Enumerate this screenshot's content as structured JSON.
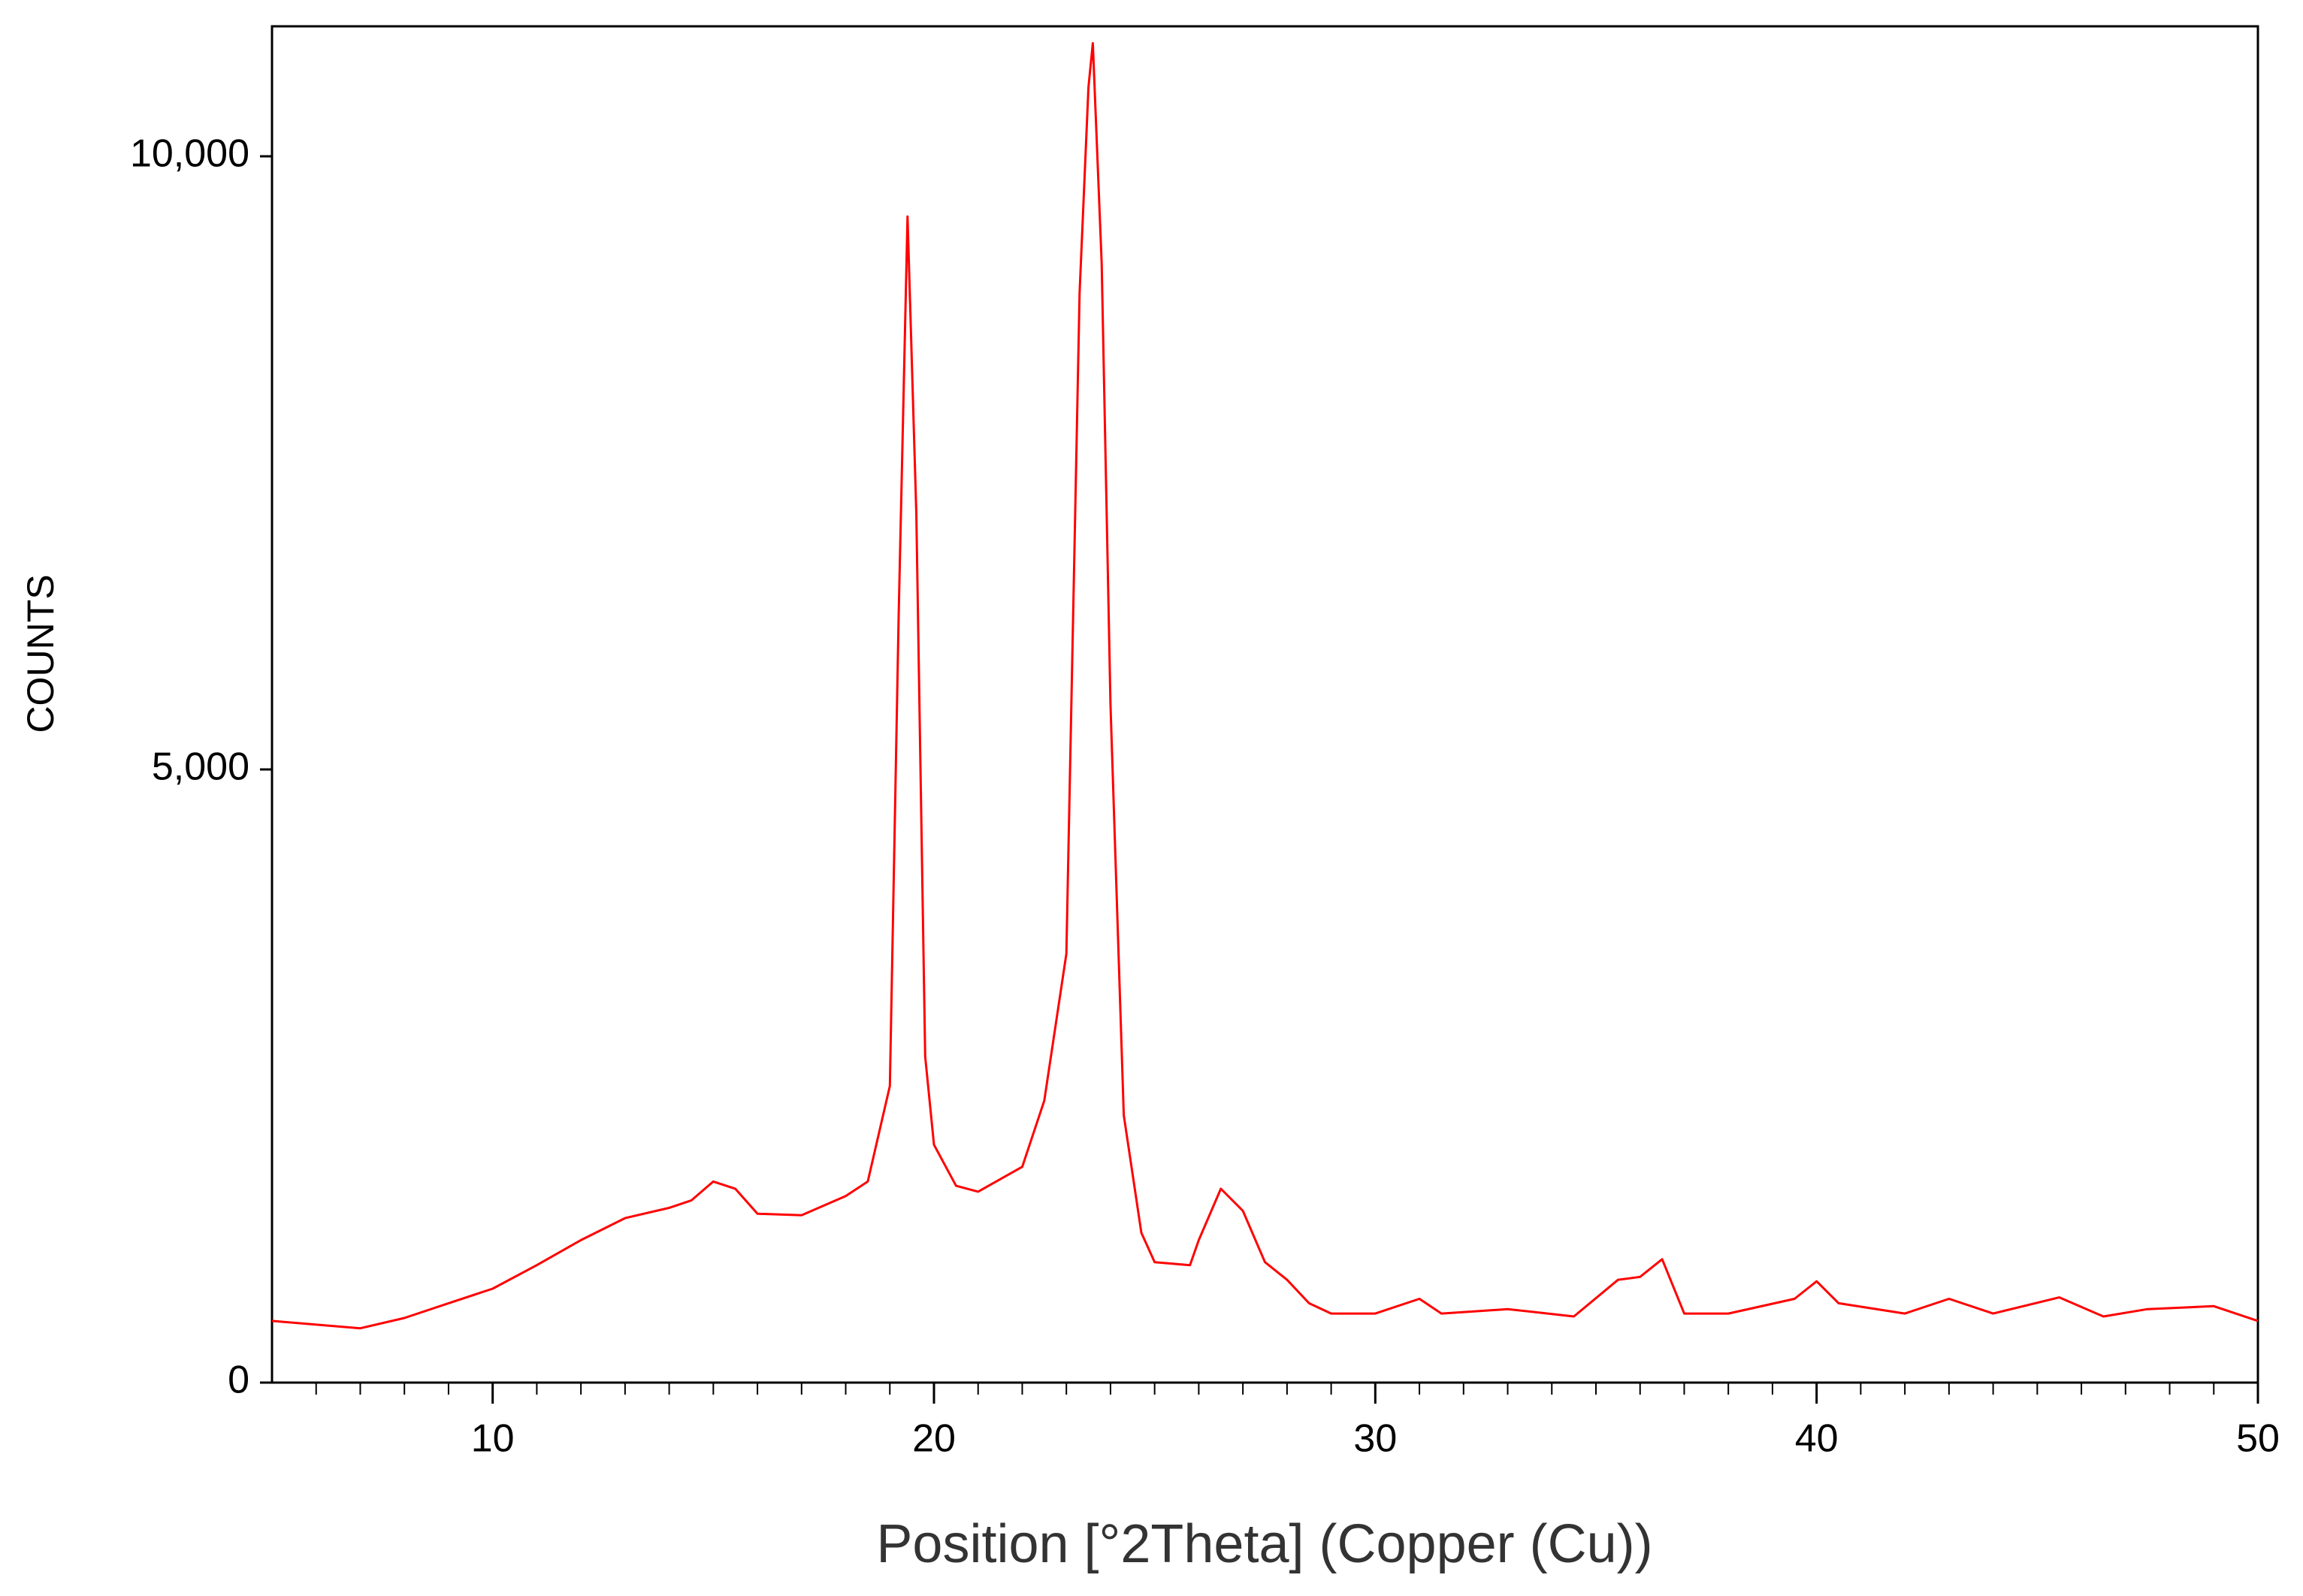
{
  "chart_data": {
    "type": "line",
    "xlabel": "Position [°2Theta] (Copper (Cu))",
    "ylabel": "COUNTS",
    "x": [
      5,
      7,
      8,
      9,
      10,
      11,
      12,
      13,
      14,
      14.5,
      15,
      15.5,
      16,
      17,
      18,
      18.5,
      19,
      19.2,
      19.4,
      19.6,
      19.8,
      20,
      20.5,
      21,
      22,
      22.5,
      23,
      23.3,
      23.5,
      23.6,
      23.8,
      24,
      24.3,
      24.7,
      25,
      25.8,
      26,
      26.5,
      27,
      27.5,
      28,
      28.5,
      29,
      30,
      31,
      31.5,
      33,
      34.5,
      35.5,
      36,
      36.5,
      37,
      38,
      39.5,
      40,
      40.5,
      42,
      43,
      44,
      45.5,
      46.5,
      47.5,
      49,
      50
    ],
    "values": [
      503,
      443,
      527,
      647,
      766,
      958,
      1162,
      1341,
      1425,
      1485,
      1640,
      1580,
      1377,
      1365,
      1521,
      1640,
      2419,
      6251,
      9509,
      7090,
      2659,
      1940,
      1605,
      1557,
      1760,
      2299,
      3497,
      8886,
      10563,
      10922,
      9126,
      5533,
      2180,
      1222,
      982,
      958,
      1162,
      1581,
      1401,
      982,
      838,
      647,
      563,
      563,
      683,
      563,
      599,
      539,
      838,
      862,
      1006,
      563,
      563,
      683,
      826,
      647,
      563,
      683,
      563,
      695,
      539,
      599,
      623,
      503
    ],
    "color": "#ff0000",
    "xlim": [
      5,
      50
    ],
    "ylim": [
      0,
      11060
    ],
    "xticks": [
      10,
      20,
      30,
      40,
      50
    ],
    "xminorticks": [
      6,
      7,
      8,
      9,
      11,
      12,
      13,
      14,
      15,
      16,
      17,
      18,
      19,
      21,
      22,
      23,
      24,
      25,
      26,
      27,
      28,
      29,
      31,
      32,
      33,
      34,
      35,
      36,
      37,
      38,
      39,
      41,
      42,
      43,
      44,
      45,
      46,
      47,
      48,
      49
    ],
    "yticks": [
      0,
      {
        "value": 5000,
        "label": "5,000"
      },
      {
        "value": 10000,
        "label": "10,000"
      }
    ]
  }
}
